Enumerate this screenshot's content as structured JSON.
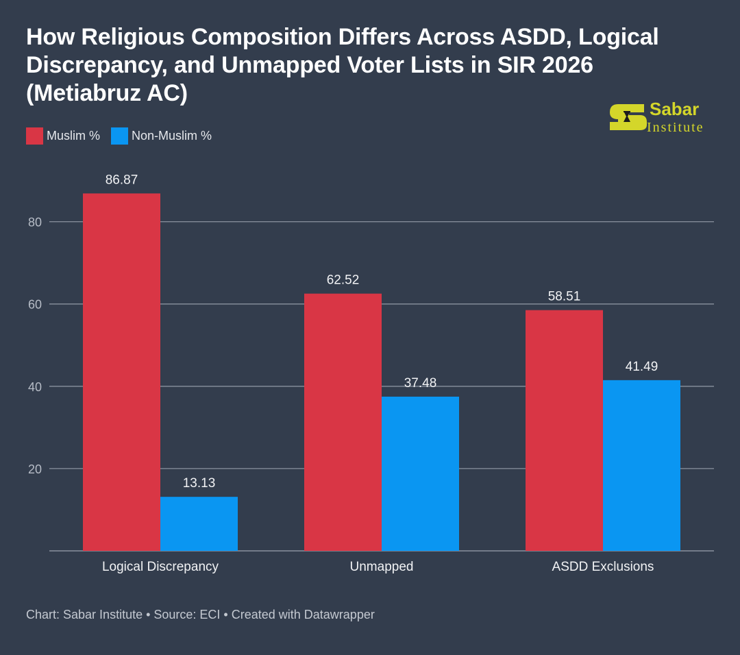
{
  "header": {
    "title": "How Religious Composition Differs Across ASDD, Logical Discrepancy, and Unmapped Voter Lists in SIR 2026 (Metiabruz AC)"
  },
  "logo": {
    "name_top": "Sabar",
    "name_bottom": "Institute",
    "color": "#d4d62a"
  },
  "legend": {
    "items": [
      {
        "label": "Muslim %",
        "color": "#d93645"
      },
      {
        "label": "Non-Muslim %",
        "color": "#0a96f2"
      }
    ]
  },
  "footer": {
    "text": "Chart: Sabar Institute • Source: ECI • Created with Datawrapper"
  },
  "chart_data": {
    "type": "bar",
    "title": "How Religious Composition Differs Across ASDD, Logical Discrepancy, and Unmapped Voter Lists in SIR 2026 (Metiabruz AC)",
    "xlabel": "",
    "ylabel": "",
    "categories": [
      "Logical Discrepancy",
      "Unmapped",
      "ASDD Exclusions"
    ],
    "series": [
      {
        "name": "Muslim %",
        "color": "#d93645",
        "values": [
          86.87,
          62.52,
          58.51
        ],
        "labels": [
          "86.87",
          "62.52",
          "58.51"
        ]
      },
      {
        "name": "Non-Muslim %",
        "color": "#0a96f2",
        "values": [
          13.13,
          37.48,
          41.49
        ],
        "labels": [
          "13.13",
          "37.48",
          "41.49"
        ]
      }
    ],
    "ylim": [
      0,
      80
    ],
    "yticks": [
      20,
      40,
      60,
      80
    ],
    "ytick_labels": [
      "20",
      "40",
      "60",
      "80"
    ],
    "grid": true,
    "legend_position": "top-left",
    "grid_color": "#8a929e",
    "axis_text_color": "#b6bcc6"
  }
}
